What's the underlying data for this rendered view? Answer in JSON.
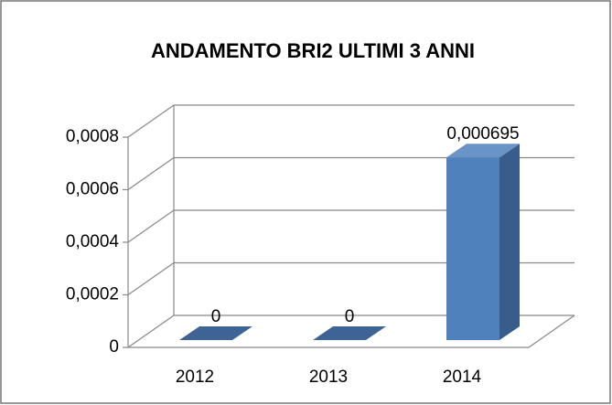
{
  "chart_data": {
    "type": "bar3d",
    "title": "ANDAMENTO BRI2 ULTIMI 3 ANNI",
    "categories": [
      "2012",
      "2013",
      "2014"
    ],
    "values": [
      0,
      0,
      0.000695
    ],
    "value_labels": [
      "0",
      "0",
      "0,000695"
    ],
    "color": "#4f81bd",
    "ylim": [
      0,
      0.0008
    ],
    "yticks": [
      0,
      {
        "value": 0.0002,
        "label": "0,0002"
      },
      {
        "value": 0.0004,
        "label": "0,0004"
      },
      {
        "value": 0.0006,
        "label": "0,0006"
      },
      {
        "value": 0.0008,
        "label": "0,0008"
      }
    ],
    "grid": true
  }
}
